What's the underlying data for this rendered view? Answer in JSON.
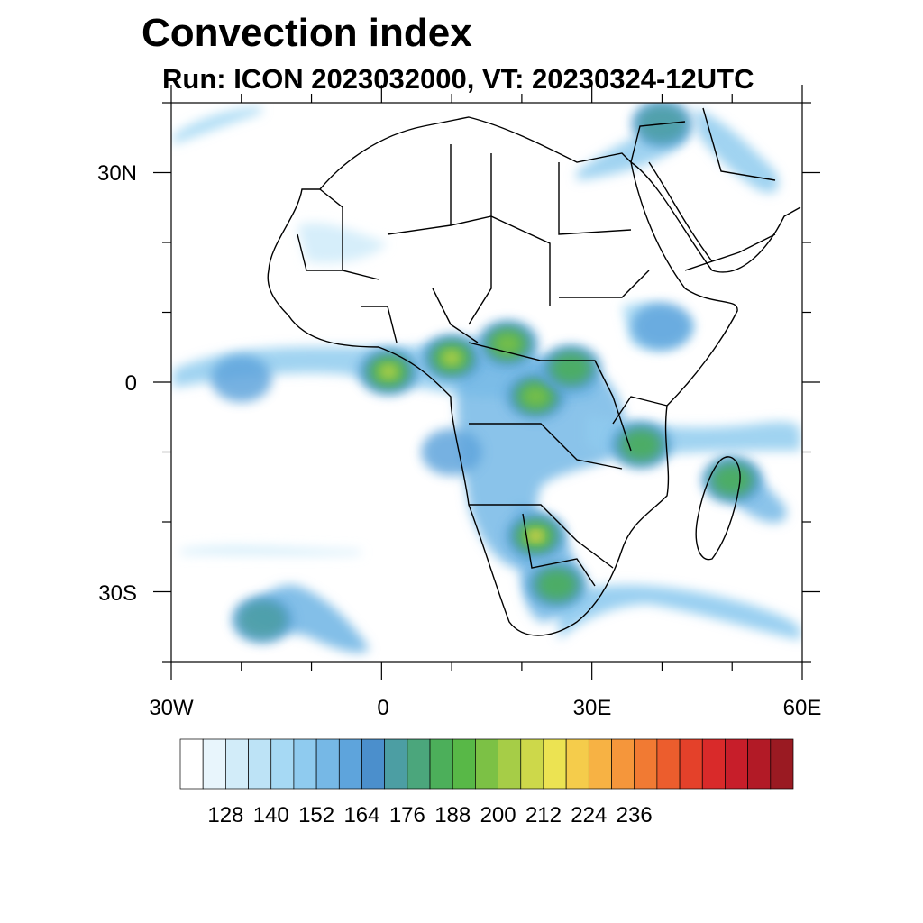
{
  "title": "Convection index",
  "subtitle": "Run: ICON 2023032000,  VT: 20230324-12UTC",
  "lon_labels": [
    "30W",
    "0",
    "30E",
    "60E"
  ],
  "lat_labels": [
    "30N",
    "0",
    "30S"
  ],
  "extent": {
    "lon_min": -30,
    "lon_max": 60,
    "lat_min": -40,
    "lat_max": 40
  },
  "colorbar": {
    "tick_labels": [
      "128",
      "140",
      "152",
      "164",
      "176",
      "188",
      "200",
      "212",
      "224",
      "236"
    ],
    "colors": [
      "#ffffff",
      "#e8f5fc",
      "#d2ecf9",
      "#bde3f6",
      "#a6d9f4",
      "#8fcbef",
      "#76b8e6",
      "#5ea4dc",
      "#4b8fcc",
      "#4c9ea3",
      "#4ba67c",
      "#4caf5a",
      "#58b847",
      "#7cc145",
      "#a6cd47",
      "#cdd84a",
      "#ece352",
      "#f5cc4b",
      "#f7b244",
      "#f5963b",
      "#f17a33",
      "#ec5d2d",
      "#e4412a",
      "#d92a2a",
      "#c71e2a",
      "#b21a26",
      "#9a1a22",
      "#7f1a1d"
    ]
  },
  "chart_data": {
    "type": "heatmap",
    "title": "Convection index",
    "subtitle": "Run: ICON 2023032000,  VT: 20230324-12UTC",
    "x_ticks": [
      "30W",
      "0",
      "30E",
      "60E"
    ],
    "y_ticks": [
      "30N",
      "0",
      "30S"
    ],
    "colorbar_ticks": [
      128,
      140,
      152,
      164,
      176,
      188,
      200,
      212,
      224,
      236
    ],
    "blobs": [
      {
        "lon": 1,
        "lat": 1.5,
        "value": 205
      },
      {
        "lon": 10,
        "lat": 3.5,
        "value": 200
      },
      {
        "lon": 18,
        "lat": 5.5,
        "value": 195
      },
      {
        "lon": 22,
        "lat": -2,
        "value": 190
      },
      {
        "lon": 27,
        "lat": 2,
        "value": 180
      },
      {
        "lon": 37,
        "lat": -9,
        "value": 185
      },
      {
        "lon": 22,
        "lat": -22,
        "value": 220
      },
      {
        "lon": 25,
        "lat": -29,
        "value": 178
      },
      {
        "lon": 50,
        "lat": -14,
        "value": 185
      },
      {
        "lon": -17,
        "lat": -34,
        "value": 175
      },
      {
        "lon": 10,
        "lat": -10,
        "value": 160
      },
      {
        "lon": -20,
        "lat": 0.5,
        "value": 160
      },
      {
        "lon": 40,
        "lat": 8,
        "value": 155
      },
      {
        "lon": 40,
        "lat": 37,
        "value": 170
      },
      {
        "lon": 45,
        "lat": 32,
        "value": 150
      },
      {
        "lon": -10,
        "lat": 21,
        "value": 140
      }
    ]
  }
}
